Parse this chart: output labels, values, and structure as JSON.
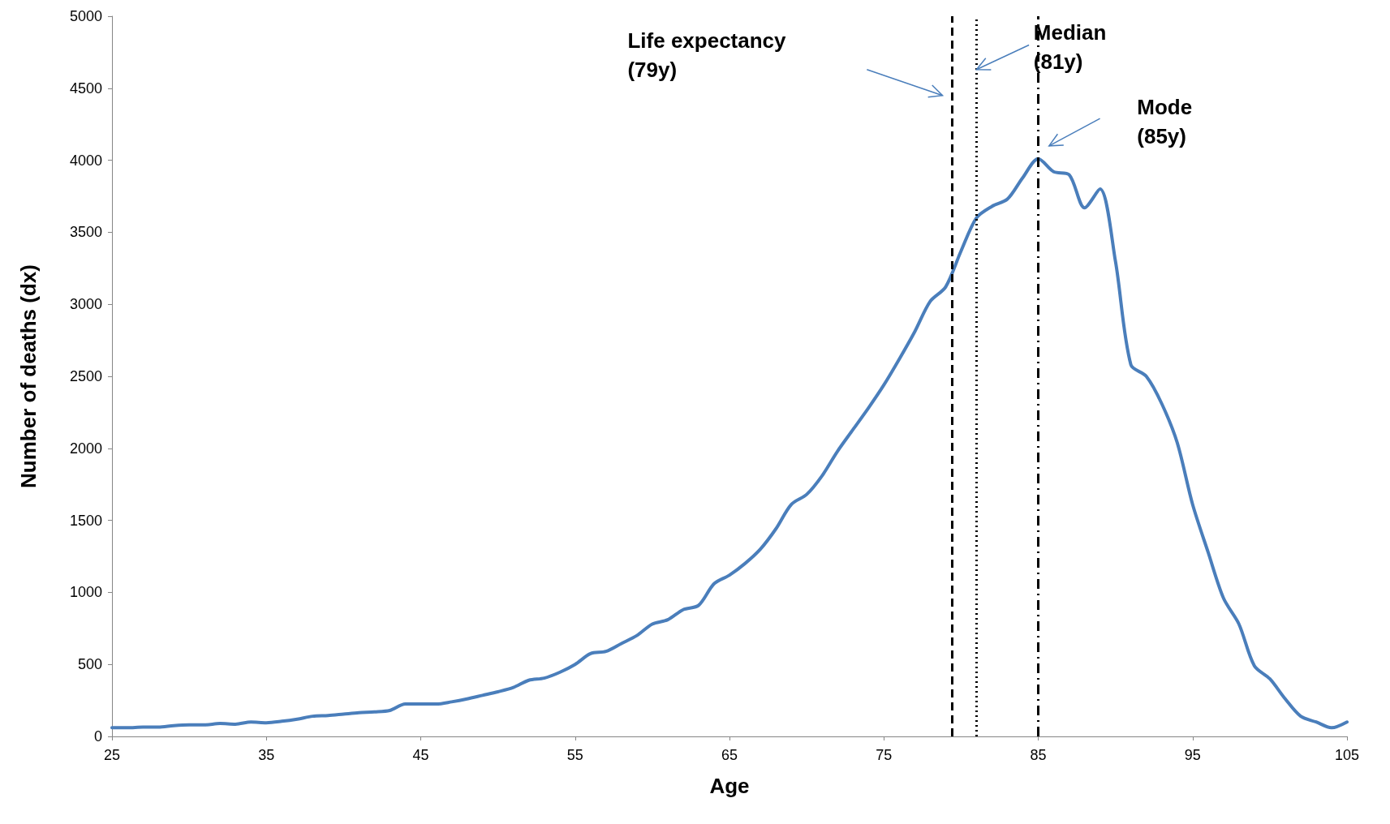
{
  "chart_data": {
    "type": "line",
    "xlabel": "Age",
    "ylabel": "Number of deaths (dx)",
    "x": [
      25,
      26,
      27,
      28,
      29,
      30,
      31,
      32,
      33,
      34,
      35,
      36,
      37,
      38,
      39,
      40,
      41,
      42,
      43,
      44,
      45,
      46,
      47,
      48,
      49,
      50,
      51,
      52,
      53,
      54,
      55,
      56,
      57,
      58,
      59,
      60,
      61,
      62,
      63,
      64,
      65,
      66,
      67,
      68,
      69,
      70,
      71,
      72,
      73,
      74,
      75,
      76,
      77,
      78,
      79,
      80,
      81,
      82,
      83,
      84,
      85,
      86,
      87,
      88,
      89,
      90,
      91,
      92,
      93,
      94,
      95,
      96,
      97,
      98,
      99,
      100,
      101,
      102,
      103,
      104,
      105
    ],
    "series": [
      {
        "color": "#4a7ebb",
        "values": [
          60,
          60,
          65,
          65,
          75,
          80,
          80,
          90,
          85,
          100,
          95,
          105,
          120,
          140,
          145,
          155,
          165,
          170,
          180,
          225,
          225,
          225,
          240,
          260,
          285,
          310,
          340,
          390,
          405,
          445,
          500,
          575,
          590,
          645,
          700,
          780,
          810,
          880,
          910,
          1060,
          1120,
          1200,
          1300,
          1440,
          1610,
          1680,
          1810,
          1980,
          2130,
          2280,
          2440,
          2620,
          2810,
          3020,
          3120,
          3370,
          3600,
          3680,
          3730,
          3880,
          4010,
          3920,
          3900,
          3670,
          3800,
          3300,
          2580,
          2500,
          2310,
          2040,
          1610,
          1280,
          960,
          780,
          490,
          400,
          260,
          140,
          100,
          60,
          100
        ]
      }
    ],
    "xlim": [
      25,
      105
    ],
    "xticks": [
      25,
      35,
      45,
      55,
      65,
      75,
      85,
      95,
      105
    ],
    "ylim": [
      0,
      5000
    ],
    "yticks": [
      0,
      500,
      1000,
      1500,
      2000,
      2500,
      3000,
      3500,
      4000,
      4500,
      5000
    ],
    "grid": false,
    "marker": "none",
    "line_style": "solid",
    "annotations": [
      "Life expectancy (79y)",
      {
        "text": "Median (81y)",
        "x": 81,
        "y": 4630
      },
      "Mode (85y)"
    ],
    "ref_lines": [
      {
        "axis": "x",
        "value": 79.4,
        "line_style": "dashed",
        "color": "#000000"
      },
      {
        "axis": "x",
        "value": 81,
        "line_style": "dotted",
        "color": "#000000"
      },
      {
        "axis": "x",
        "value": 85,
        "line_style": "dashdot",
        "color": "#000000"
      }
    ]
  }
}
